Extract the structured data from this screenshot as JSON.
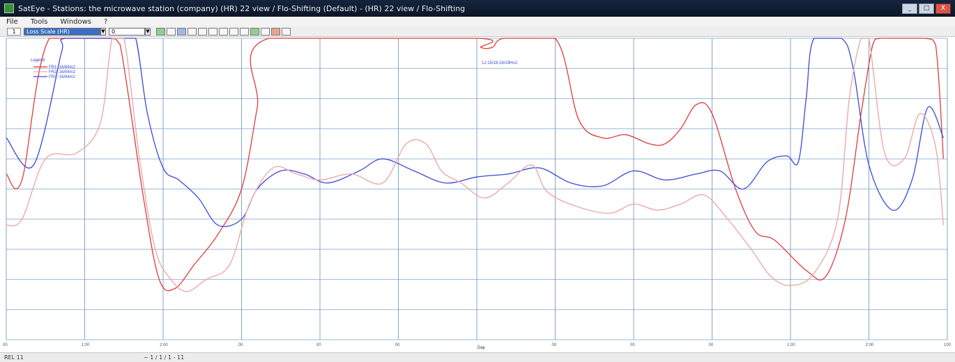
{
  "window": {
    "title": "SatEye - Stations: the microwave station (company) (HR) 22 view / Flo-Shifting (Default) - (HR) 22 view / Flo-Shifting",
    "minimize_label": "_",
    "maximize_label": "□",
    "close_label": "X"
  },
  "menu": {
    "items": [
      "File",
      "Tools",
      "Windows",
      "?"
    ]
  },
  "toolbar": {
    "view_box": "1",
    "station_select": "Loss Scale (HR)",
    "level_select": "0"
  },
  "chart_data": {
    "type": "line",
    "title": "",
    "xlabel": "Day",
    "ylabel": "",
    "x": [
      0,
      1,
      2,
      3,
      4,
      5,
      6,
      7,
      8,
      9,
      10,
      11,
      12
    ],
    "xlim": [
      0,
      12
    ],
    "ylim": [
      0,
      10
    ],
    "x_tick_labels": [
      "00",
      "1:00",
      "2:00",
      "00",
      "00",
      "00",
      "Day",
      "00",
      "00",
      "00",
      "1:00",
      "2:00",
      "100"
    ],
    "y_tick_labels": [
      "",
      "",
      "",
      "",
      "",
      "",
      "",
      "",
      "",
      "",
      ""
    ],
    "grid": true,
    "legend": {
      "position": "top-left",
      "header": "Legend",
      "entries": [
        "FR1: 16/84m2",
        "FR2: 16/84m2",
        "FR3: 16/84m2"
      ]
    },
    "annotation": "12:15/18:16/19Hn2",
    "colors": {
      "red": "#e03b3b",
      "blue": "#3b49d6",
      "pink": "#ecaaaa",
      "grid_v": "#7fa6c8",
      "grid_h": "#9bb8d2"
    },
    "series": [
      {
        "color": "red",
        "points": [
          [
            0,
            5.5
          ],
          [
            0.2,
            5.3
          ],
          [
            0.55,
            10
          ],
          [
            1.3,
            10
          ],
          [
            1.45,
            9.8
          ],
          [
            1.75,
            4.7
          ],
          [
            1.95,
            2.0
          ],
          [
            2.15,
            1.7
          ],
          [
            2.4,
            2.5
          ],
          [
            2.7,
            3.5
          ],
          [
            3.0,
            5.0
          ],
          [
            3.2,
            7.7
          ],
          [
            3.35,
            10
          ],
          [
            6.0,
            10
          ],
          [
            6.05,
            9.7
          ],
          [
            6.2,
            9.7
          ],
          [
            6.35,
            10
          ],
          [
            7.0,
            10
          ],
          [
            7.3,
            7.3
          ],
          [
            7.6,
            6.7
          ],
          [
            7.9,
            6.8
          ],
          [
            8.2,
            6.5
          ],
          [
            8.4,
            6.5
          ],
          [
            8.6,
            7.0
          ],
          [
            8.8,
            7.8
          ],
          [
            9.0,
            7.5
          ],
          [
            9.3,
            5.0
          ],
          [
            9.55,
            3.6
          ],
          [
            9.8,
            3.3
          ],
          [
            10.2,
            2.3
          ],
          [
            10.45,
            2.1
          ],
          [
            10.7,
            4.0
          ],
          [
            10.9,
            7.5
          ],
          [
            11.05,
            9.8
          ],
          [
            11.15,
            10
          ],
          [
            11.7,
            10
          ],
          [
            11.85,
            9.8
          ],
          [
            11.95,
            6.0
          ]
        ]
      },
      {
        "color": "blue",
        "points": [
          [
            0,
            6.7
          ],
          [
            0.35,
            5.8
          ],
          [
            0.7,
            9.5
          ],
          [
            0.75,
            10
          ],
          [
            1.5,
            10
          ],
          [
            1.65,
            10
          ],
          [
            1.8,
            7.5
          ],
          [
            2.0,
            5.7
          ],
          [
            2.2,
            5.3
          ],
          [
            2.45,
            4.7
          ],
          [
            2.7,
            3.8
          ],
          [
            3.0,
            4.0
          ],
          [
            3.2,
            5.0
          ],
          [
            3.5,
            5.6
          ],
          [
            3.8,
            5.5
          ],
          [
            4.1,
            5.2
          ],
          [
            4.5,
            5.6
          ],
          [
            4.8,
            6.0
          ],
          [
            5.2,
            5.6
          ],
          [
            5.6,
            5.2
          ],
          [
            6.0,
            5.4
          ],
          [
            6.4,
            5.5
          ],
          [
            6.8,
            5.7
          ],
          [
            7.2,
            5.2
          ],
          [
            7.6,
            5.1
          ],
          [
            8.0,
            5.6
          ],
          [
            8.4,
            5.3
          ],
          [
            8.8,
            5.5
          ],
          [
            9.1,
            5.6
          ],
          [
            9.4,
            5.0
          ],
          [
            9.7,
            5.9
          ],
          [
            9.95,
            6.1
          ],
          [
            10.1,
            5.9
          ],
          [
            10.2,
            8.0
          ],
          [
            10.3,
            10
          ],
          [
            10.65,
            10
          ],
          [
            10.8,
            9.0
          ],
          [
            11.0,
            5.8
          ],
          [
            11.3,
            4.3
          ],
          [
            11.55,
            5.3
          ],
          [
            11.75,
            7.7
          ],
          [
            11.95,
            6.7
          ]
        ]
      },
      {
        "color": "pink",
        "points": [
          [
            0,
            3.8
          ],
          [
            0.2,
            4.0
          ],
          [
            0.5,
            6.0
          ],
          [
            0.9,
            6.2
          ],
          [
            1.2,
            7.2
          ],
          [
            1.35,
            10
          ],
          [
            1.5,
            10
          ],
          [
            1.7,
            6.0
          ],
          [
            1.9,
            3.0
          ],
          [
            2.1,
            2.0
          ],
          [
            2.3,
            1.6
          ],
          [
            2.55,
            2.0
          ],
          [
            2.85,
            2.5
          ],
          [
            3.1,
            4.5
          ],
          [
            3.4,
            5.7
          ],
          [
            3.7,
            5.5
          ],
          [
            4.0,
            5.3
          ],
          [
            4.4,
            5.5
          ],
          [
            4.8,
            5.2
          ],
          [
            5.1,
            6.5
          ],
          [
            5.35,
            6.5
          ],
          [
            5.55,
            5.6
          ],
          [
            5.8,
            5.2
          ],
          [
            6.1,
            4.7
          ],
          [
            6.4,
            5.2
          ],
          [
            6.7,
            5.8
          ],
          [
            6.9,
            4.9
          ],
          [
            7.3,
            4.4
          ],
          [
            7.7,
            4.2
          ],
          [
            8.0,
            4.5
          ],
          [
            8.3,
            4.3
          ],
          [
            8.6,
            4.5
          ],
          [
            8.9,
            4.8
          ],
          [
            9.2,
            4.0
          ],
          [
            9.5,
            3.0
          ],
          [
            9.75,
            2.1
          ],
          [
            10.0,
            1.8
          ],
          [
            10.3,
            2.2
          ],
          [
            10.6,
            4.0
          ],
          [
            10.75,
            8.0
          ],
          [
            10.9,
            10
          ],
          [
            11.0,
            10
          ],
          [
            11.2,
            6.2
          ],
          [
            11.45,
            6.0
          ],
          [
            11.65,
            7.5
          ],
          [
            11.85,
            6.4
          ],
          [
            11.95,
            3.8
          ]
        ]
      }
    ]
  },
  "status": {
    "left": "REL 11",
    "middle": "~ 1 / 1 / 1 - 11"
  }
}
